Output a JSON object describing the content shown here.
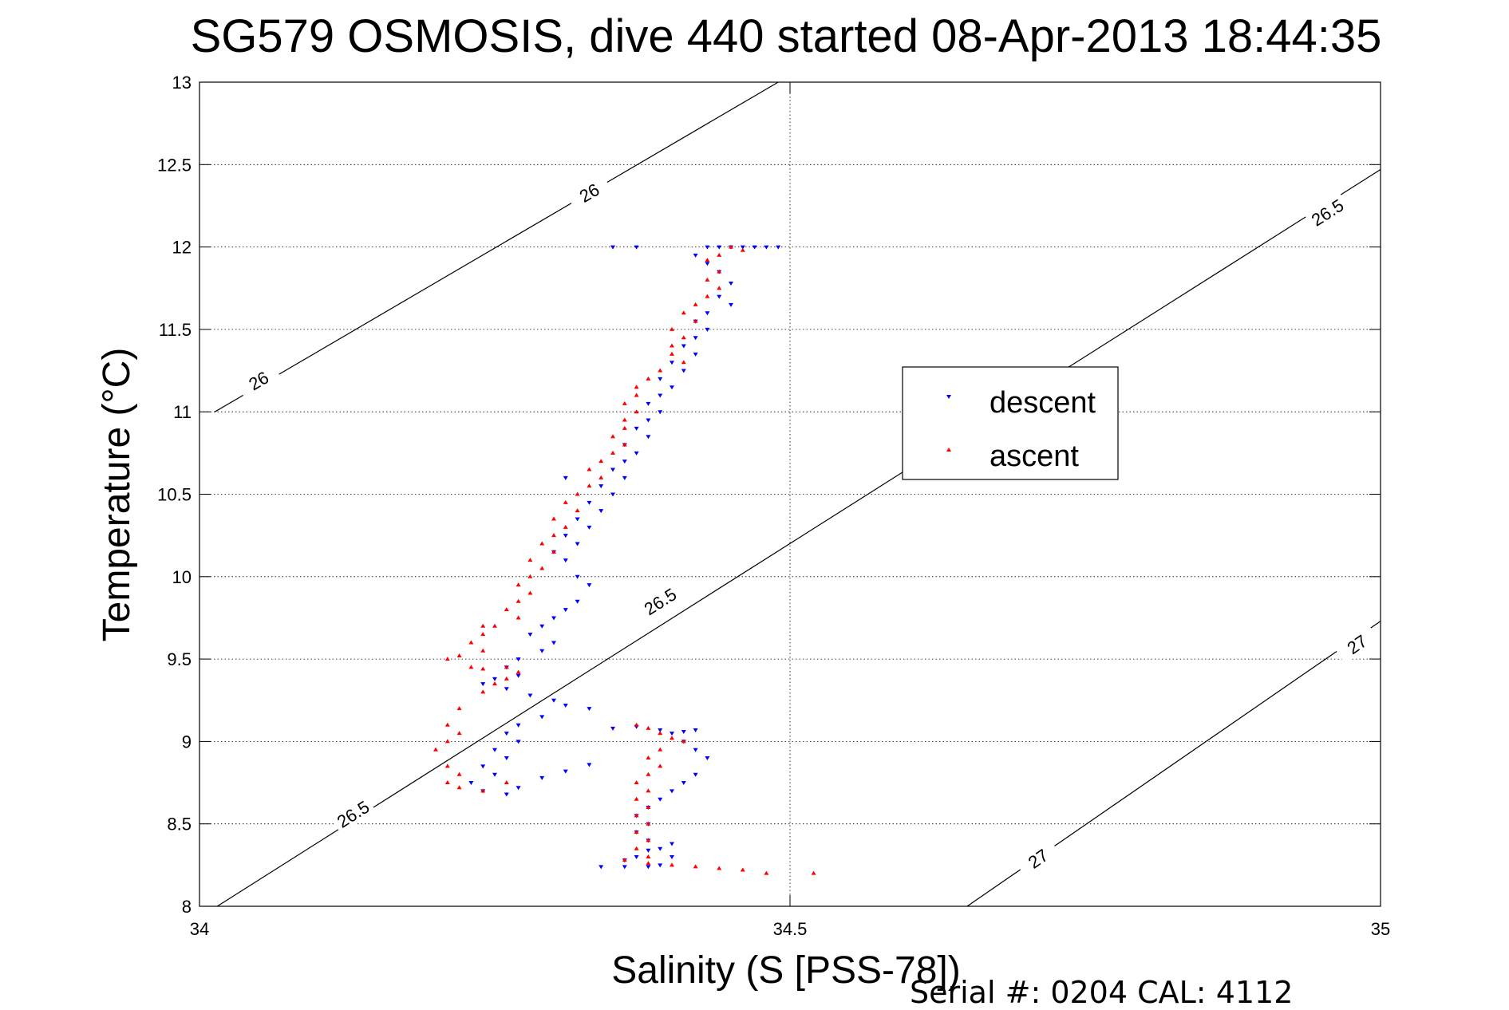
{
  "chart_data": {
    "type": "scatter",
    "title": "SG579 OSMOSIS, dive 440 started 08-Apr-2013 18:44:35",
    "xlabel": "Salinity (S [PSS-78])",
    "ylabel": "Temperature (°C)",
    "xlim": [
      34,
      35
    ],
    "ylim": [
      8,
      13
    ],
    "xticks": [
      34,
      34.5,
      35
    ],
    "xtick_labels": [
      "34",
      "34.5",
      "35"
    ],
    "yticks": [
      8,
      8.5,
      9,
      9.5,
      10,
      10.5,
      11,
      11.5,
      12,
      12.5,
      13
    ],
    "ytick_labels": [
      "8",
      "8.5",
      "9",
      "9.5",
      "10",
      "10.5",
      "11",
      "11.5",
      "12",
      "12.5",
      "13"
    ],
    "grid": true,
    "legend_position": "upper-right-inside",
    "isopycnals": [
      {
        "label": "26",
        "points": [
          [
            34.013,
            11.0
          ],
          [
            34.49,
            13.0
          ]
        ],
        "label_positions": [
          [
            34.05,
            11.19
          ],
          [
            34.33,
            12.33
          ]
        ]
      },
      {
        "label": "26.5",
        "points": [
          [
            34.015,
            8.0
          ],
          [
            35.0,
            12.47
          ]
        ],
        "label_positions": [
          [
            34.13,
            8.56
          ],
          [
            34.39,
            9.85
          ],
          [
            34.955,
            12.21
          ]
        ]
      },
      {
        "label": "27",
        "points": [
          [
            34.65,
            8.0
          ],
          [
            35.0,
            9.73
          ]
        ],
        "label_positions": [
          [
            34.71,
            8.29
          ],
          [
            34.98,
            9.59
          ]
        ]
      }
    ],
    "series": [
      {
        "name": "descent",
        "color": "#0000ff",
        "marker": "triangle-down",
        "points": [
          [
            34.35,
            12.0
          ],
          [
            34.37,
            12.0
          ],
          [
            34.43,
            12.0
          ],
          [
            34.44,
            12.0
          ],
          [
            34.45,
            12.0
          ],
          [
            34.46,
            12.0
          ],
          [
            34.47,
            12.0
          ],
          [
            34.48,
            12.0
          ],
          [
            34.49,
            12.0
          ],
          [
            34.42,
            11.95
          ],
          [
            34.43,
            11.9
          ],
          [
            34.44,
            11.85
          ],
          [
            34.45,
            11.78
          ],
          [
            34.44,
            11.7
          ],
          [
            34.45,
            11.65
          ],
          [
            34.43,
            11.6
          ],
          [
            34.42,
            11.55
          ],
          [
            34.43,
            11.5
          ],
          [
            34.42,
            11.45
          ],
          [
            34.41,
            11.4
          ],
          [
            34.42,
            11.35
          ],
          [
            34.4,
            11.3
          ],
          [
            34.41,
            11.25
          ],
          [
            34.39,
            11.2
          ],
          [
            34.4,
            11.15
          ],
          [
            34.39,
            11.1
          ],
          [
            34.38,
            11.05
          ],
          [
            34.39,
            11.0
          ],
          [
            34.38,
            10.95
          ],
          [
            34.37,
            10.9
          ],
          [
            34.38,
            10.85
          ],
          [
            34.36,
            10.8
          ],
          [
            34.37,
            10.75
          ],
          [
            34.36,
            10.7
          ],
          [
            34.35,
            10.65
          ],
          [
            34.36,
            10.6
          ],
          [
            34.34,
            10.55
          ],
          [
            34.35,
            10.5
          ],
          [
            34.33,
            10.45
          ],
          [
            34.34,
            10.4
          ],
          [
            34.32,
            10.35
          ],
          [
            34.33,
            10.3
          ],
          [
            34.31,
            10.25
          ],
          [
            34.32,
            10.2
          ],
          [
            34.3,
            10.15
          ],
          [
            34.31,
            10.1
          ],
          [
            34.32,
            10.0
          ],
          [
            34.33,
            9.95
          ],
          [
            34.32,
            9.85
          ],
          [
            34.31,
            9.8
          ],
          [
            34.3,
            9.75
          ],
          [
            34.29,
            9.7
          ],
          [
            34.28,
            9.65
          ],
          [
            34.3,
            9.6
          ],
          [
            34.29,
            9.55
          ],
          [
            34.27,
            9.5
          ],
          [
            34.26,
            9.45
          ],
          [
            34.27,
            9.4
          ],
          [
            34.25,
            9.38
          ],
          [
            34.24,
            9.35
          ],
          [
            34.26,
            9.32
          ],
          [
            34.28,
            9.28
          ],
          [
            34.3,
            9.25
          ],
          [
            34.31,
            9.22
          ],
          [
            34.33,
            9.2
          ],
          [
            34.29,
            9.15
          ],
          [
            34.27,
            9.1
          ],
          [
            34.26,
            9.05
          ],
          [
            34.27,
            9.0
          ],
          [
            34.25,
            8.95
          ],
          [
            34.26,
            8.9
          ],
          [
            34.24,
            8.85
          ],
          [
            34.25,
            8.8
          ],
          [
            34.23,
            8.75
          ],
          [
            34.24,
            8.7
          ],
          [
            34.26,
            8.68
          ],
          [
            34.27,
            8.72
          ],
          [
            34.29,
            8.78
          ],
          [
            34.31,
            8.82
          ],
          [
            34.33,
            8.86
          ],
          [
            34.35,
            9.08
          ],
          [
            34.37,
            9.09
          ],
          [
            34.39,
            9.07
          ],
          [
            34.4,
            9.05
          ],
          [
            34.41,
            9.06
          ],
          [
            34.42,
            9.07
          ],
          [
            34.41,
            9.0
          ],
          [
            34.42,
            8.95
          ],
          [
            34.43,
            8.9
          ],
          [
            34.42,
            8.8
          ],
          [
            34.41,
            8.75
          ],
          [
            34.4,
            8.7
          ],
          [
            34.39,
            8.65
          ],
          [
            34.38,
            8.6
          ],
          [
            34.37,
            8.55
          ],
          [
            34.38,
            8.5
          ],
          [
            34.37,
            8.45
          ],
          [
            34.38,
            8.4
          ],
          [
            34.39,
            8.35
          ],
          [
            34.4,
            8.3
          ],
          [
            34.39,
            8.25
          ],
          [
            34.38,
            8.24
          ],
          [
            34.36,
            8.24
          ],
          [
            34.34,
            8.24
          ],
          [
            34.36,
            8.28
          ],
          [
            34.37,
            8.3
          ],
          [
            34.38,
            8.34
          ],
          [
            34.4,
            8.38
          ],
          [
            34.31,
            10.6
          ]
        ]
      },
      {
        "name": "ascent",
        "color": "#ff0000",
        "marker": "triangle-up",
        "points": [
          [
            34.45,
            12.0
          ],
          [
            34.46,
            11.98
          ],
          [
            34.44,
            11.95
          ],
          [
            34.43,
            11.92
          ],
          [
            34.44,
            11.85
          ],
          [
            34.43,
            11.8
          ],
          [
            34.44,
            11.75
          ],
          [
            34.43,
            11.7
          ],
          [
            34.42,
            11.65
          ],
          [
            34.41,
            11.6
          ],
          [
            34.42,
            11.55
          ],
          [
            34.4,
            11.5
          ],
          [
            34.41,
            11.45
          ],
          [
            34.4,
            11.4
          ],
          [
            34.4,
            11.35
          ],
          [
            34.41,
            11.3
          ],
          [
            34.39,
            11.25
          ],
          [
            34.38,
            11.2
          ],
          [
            34.37,
            11.15
          ],
          [
            34.37,
            11.1
          ],
          [
            34.36,
            11.05
          ],
          [
            34.37,
            11.0
          ],
          [
            34.36,
            10.95
          ],
          [
            34.36,
            10.9
          ],
          [
            34.35,
            10.85
          ],
          [
            34.36,
            10.8
          ],
          [
            34.35,
            10.75
          ],
          [
            34.34,
            10.7
          ],
          [
            34.33,
            10.65
          ],
          [
            34.34,
            10.6
          ],
          [
            34.33,
            10.55
          ],
          [
            34.32,
            10.5
          ],
          [
            34.31,
            10.45
          ],
          [
            34.32,
            10.4
          ],
          [
            34.3,
            10.35
          ],
          [
            34.31,
            10.3
          ],
          [
            34.3,
            10.25
          ],
          [
            34.29,
            10.2
          ],
          [
            34.3,
            10.15
          ],
          [
            34.28,
            10.1
          ],
          [
            34.29,
            10.05
          ],
          [
            34.28,
            10.0
          ],
          [
            34.27,
            9.95
          ],
          [
            34.28,
            9.9
          ],
          [
            34.27,
            9.85
          ],
          [
            34.26,
            9.8
          ],
          [
            34.27,
            9.75
          ],
          [
            34.25,
            9.7
          ],
          [
            34.24,
            9.65
          ],
          [
            34.23,
            9.6
          ],
          [
            34.24,
            9.55
          ],
          [
            34.22,
            9.52
          ],
          [
            34.21,
            9.5
          ],
          [
            34.23,
            9.45
          ],
          [
            34.24,
            9.44
          ],
          [
            34.26,
            9.45
          ],
          [
            34.27,
            9.42
          ],
          [
            34.26,
            9.38
          ],
          [
            34.25,
            9.35
          ],
          [
            34.24,
            9.3
          ],
          [
            34.22,
            9.2
          ],
          [
            34.21,
            9.1
          ],
          [
            34.22,
            9.05
          ],
          [
            34.21,
            9.0
          ],
          [
            34.2,
            8.95
          ],
          [
            34.21,
            8.85
          ],
          [
            34.22,
            8.8
          ],
          [
            34.21,
            8.75
          ],
          [
            34.22,
            8.72
          ],
          [
            34.24,
            8.7
          ],
          [
            34.26,
            8.75
          ],
          [
            34.37,
            9.1
          ],
          [
            34.38,
            9.08
          ],
          [
            34.39,
            9.05
          ],
          [
            34.4,
            9.02
          ],
          [
            34.41,
            9.0
          ],
          [
            34.39,
            8.95
          ],
          [
            34.38,
            8.9
          ],
          [
            34.39,
            8.85
          ],
          [
            34.38,
            8.8
          ],
          [
            34.37,
            8.75
          ],
          [
            34.38,
            8.7
          ],
          [
            34.37,
            8.65
          ],
          [
            34.38,
            8.6
          ],
          [
            34.37,
            8.55
          ],
          [
            34.38,
            8.5
          ],
          [
            34.37,
            8.45
          ],
          [
            34.38,
            8.4
          ],
          [
            34.37,
            8.35
          ],
          [
            34.38,
            8.3
          ],
          [
            34.36,
            8.28
          ],
          [
            34.38,
            8.26
          ],
          [
            34.4,
            8.25
          ],
          [
            34.42,
            8.24
          ],
          [
            34.44,
            8.23
          ],
          [
            34.46,
            8.22
          ],
          [
            34.48,
            8.2
          ],
          [
            34.52,
            8.2
          ],
          [
            34.24,
            9.7
          ]
        ]
      }
    ]
  },
  "footer": {
    "serial_cal": "Serial #: 0204  CAL: 4112"
  }
}
